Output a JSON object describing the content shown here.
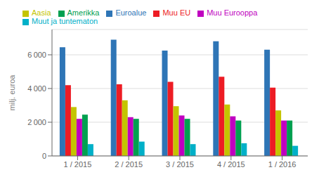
{
  "chart_data": {
    "type": "bar",
    "categories": [
      "1 / 2015",
      "2 / 2015",
      "3 / 2015",
      "4 / 2015",
      "1 / 2016"
    ],
    "series": [
      {
        "name": "Euroalue",
        "color": "#2e75b6",
        "values": [
          6450,
          6900,
          6250,
          6800,
          6300
        ]
      },
      {
        "name": "Muu EU",
        "color": "#ed1c24",
        "values": [
          4200,
          4250,
          4400,
          4700,
          4050
        ]
      },
      {
        "name": "Aasia",
        "color": "#c4c400",
        "values": [
          2900,
          3300,
          2950,
          3050,
          2700
        ]
      },
      {
        "name": "Muu Eurooppa",
        "color": "#c000c0",
        "values": [
          2200,
          2300,
          2400,
          2350,
          2100
        ]
      },
      {
        "name": "Amerikka",
        "color": "#00a050",
        "values": [
          2450,
          2200,
          2200,
          2100,
          2100
        ]
      },
      {
        "name": "Muut ja tuntematon",
        "color": "#00b0c8",
        "values": [
          700,
          850,
          700,
          750,
          600
        ]
      }
    ],
    "ylabel": "milj. euroa",
    "ylim": [
      0,
      7500
    ],
    "yticks": [
      0,
      {
        "value": 2000,
        "label": "2 000"
      },
      {
        "value": 4000,
        "label": "4 000"
      },
      {
        "value": 6000,
        "label": "6 000"
      }
    ],
    "grid": true,
    "legend": "upper left"
  }
}
